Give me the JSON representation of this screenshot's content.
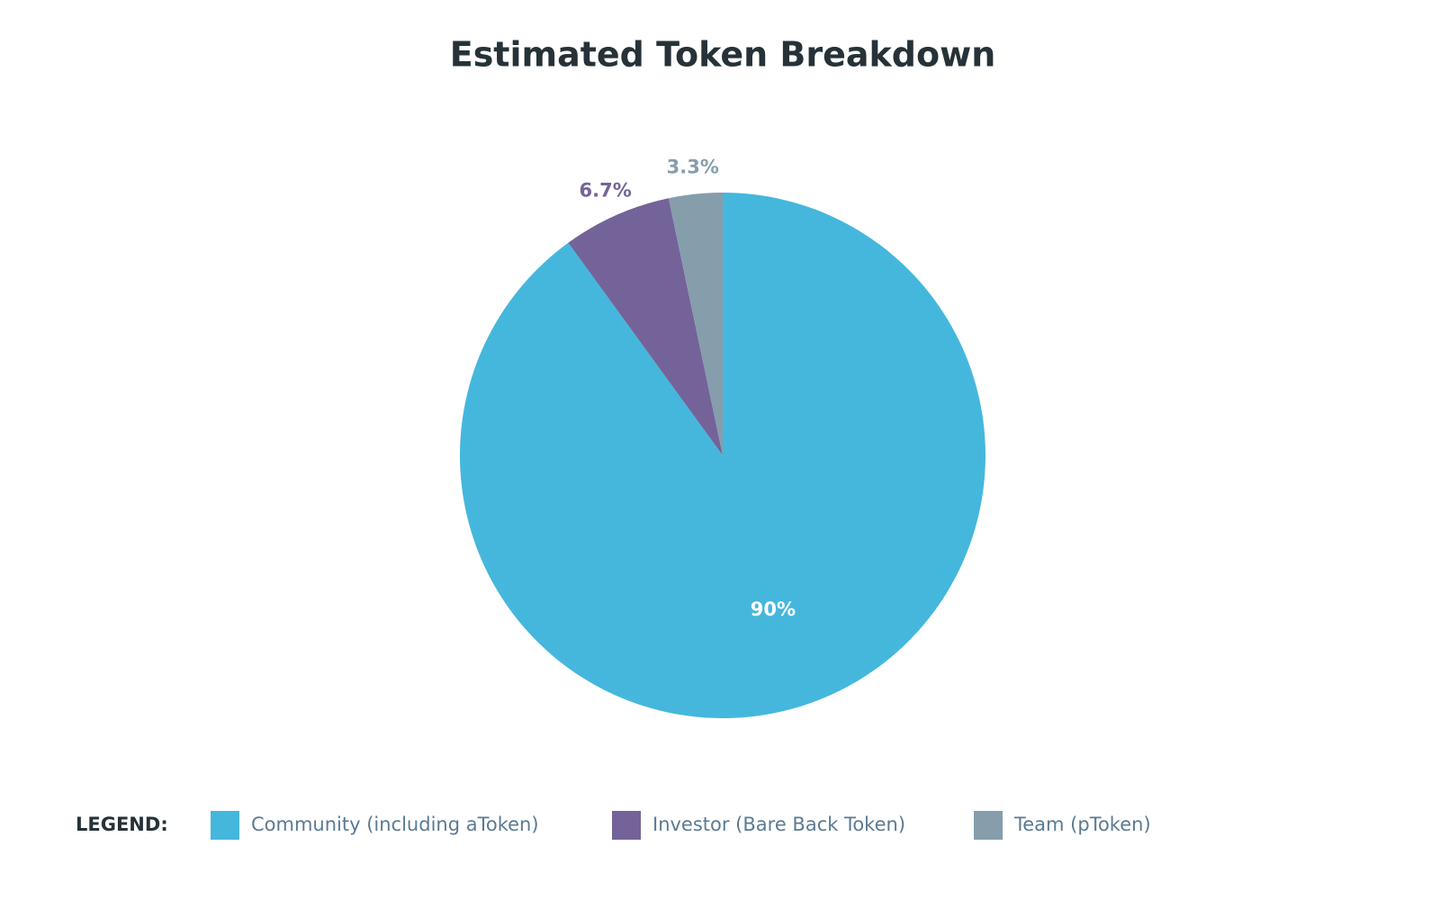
{
  "chart_data": {
    "type": "pie",
    "title": "Estimated Token Breakdown",
    "categories": [
      "Community (including aToken)",
      "Investor (Bare Back Token)",
      "Team (pToken)"
    ],
    "values": [
      90,
      6.7,
      3.3
    ],
    "value_labels": [
      "90%",
      "6.7%",
      "3.3%"
    ],
    "colors": [
      "#45b7dd",
      "#746399",
      "#869dac"
    ],
    "legend_title": "LEGEND:",
    "legend_position": "bottom"
  }
}
